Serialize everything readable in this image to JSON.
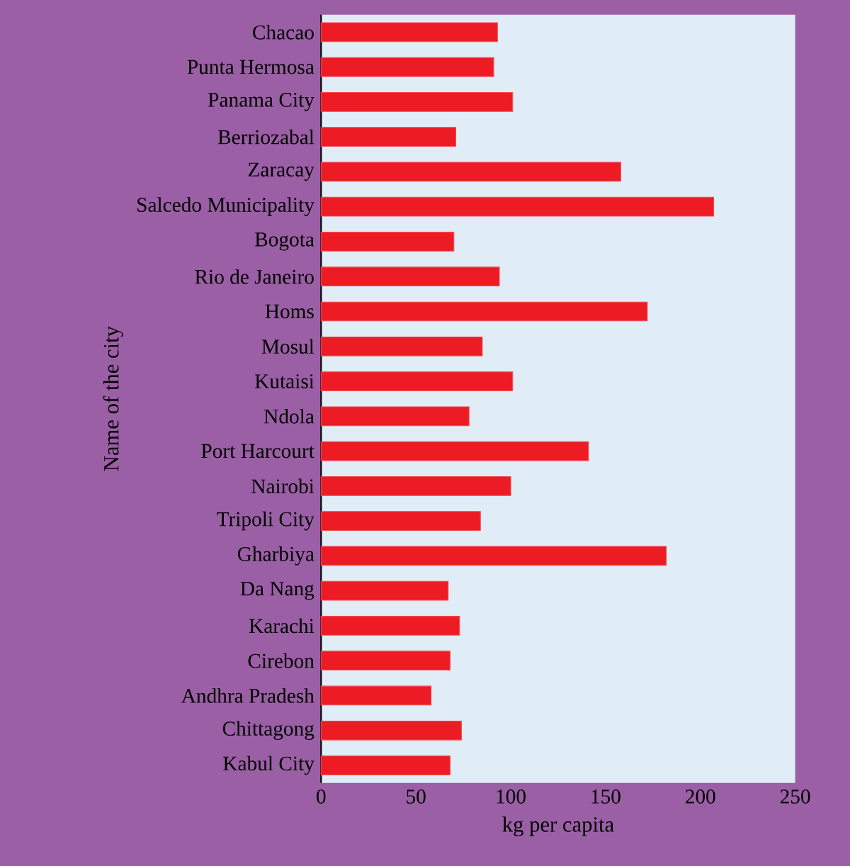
{
  "chart_data": {
    "type": "bar",
    "orientation": "horizontal",
    "xlabel": "kg per capita",
    "ylabel": "Name of the city",
    "categories": [
      "Chacao",
      "Punta Hermosa",
      "Panama City",
      "Berriozabal",
      "Zaracay",
      "Salcedo Municipality",
      "Bogota",
      "Rio de Janeiro",
      "Homs",
      "Mosul",
      "Kutaisi",
      "Ndola",
      "Port Harcourt",
      "Nairobi",
      "Tripoli City",
      "Gharbiya",
      "Da Nang",
      "Karachi",
      "Cirebon",
      "Andhra Pradesh",
      "Chittagong",
      "Kabul City"
    ],
    "values": [
      93,
      91,
      101,
      71,
      158,
      207,
      70,
      94,
      172,
      85,
      101,
      78,
      141,
      100,
      84,
      182,
      67,
      73,
      68,
      58,
      74,
      68
    ],
    "color": "#ed1c24",
    "xlim": [
      0,
      250
    ],
    "xticks": [
      0,
      50,
      100,
      150,
      200,
      250
    ],
    "grid": false
  }
}
